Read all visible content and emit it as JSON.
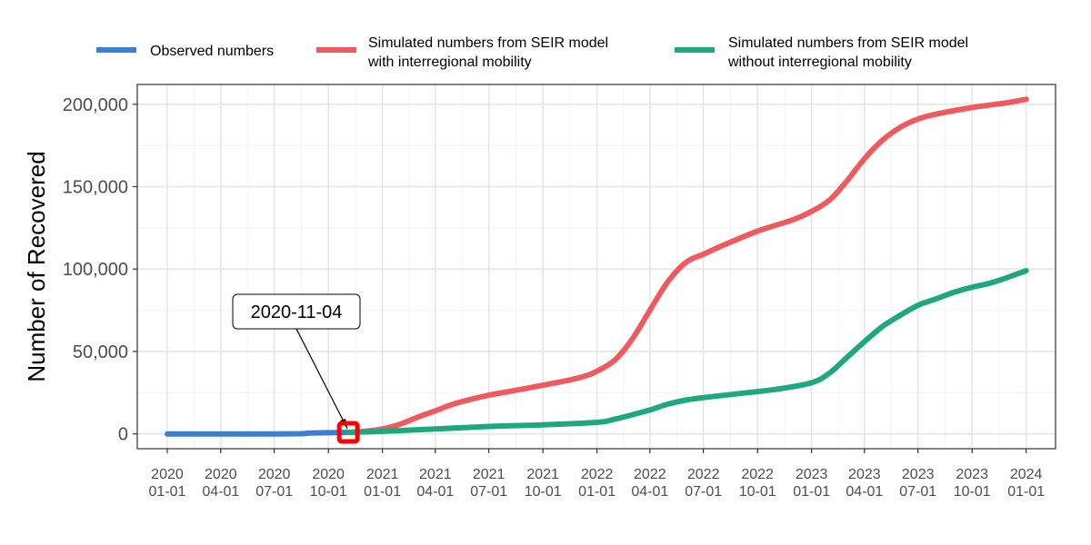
{
  "chart_data": {
    "type": "line",
    "title": "",
    "xlabel": "",
    "ylabel": "Number of Recovered",
    "ylim": [
      -9000,
      212000
    ],
    "xlim": [
      "2019-11-11",
      "2024-02-20"
    ],
    "grid": true,
    "legend_position": "top",
    "y_ticks": [
      {
        "value": 0,
        "label": "0"
      },
      {
        "value": 50000,
        "label": "50,000"
      },
      {
        "value": 100000,
        "label": "100,000"
      },
      {
        "value": 150000,
        "label": "150,000"
      },
      {
        "value": 200000,
        "label": "200,000"
      }
    ],
    "x_ticks": [
      {
        "date": "2020-01-01",
        "year": "2020",
        "md": "01-01"
      },
      {
        "date": "2020-04-01",
        "year": "2020",
        "md": "04-01"
      },
      {
        "date": "2020-07-01",
        "year": "2020",
        "md": "07-01"
      },
      {
        "date": "2020-10-01",
        "year": "2020",
        "md": "10-01"
      },
      {
        "date": "2021-01-01",
        "year": "2021",
        "md": "01-01"
      },
      {
        "date": "2021-04-01",
        "year": "2021",
        "md": "04-01"
      },
      {
        "date": "2021-07-01",
        "year": "2021",
        "md": "07-01"
      },
      {
        "date": "2021-10-01",
        "year": "2021",
        "md": "10-01"
      },
      {
        "date": "2022-01-01",
        "year": "2022",
        "md": "01-01"
      },
      {
        "date": "2022-04-01",
        "year": "2022",
        "md": "04-01"
      },
      {
        "date": "2022-07-01",
        "year": "2022",
        "md": "07-01"
      },
      {
        "date": "2022-10-01",
        "year": "2022",
        "md": "10-01"
      },
      {
        "date": "2023-01-01",
        "year": "2023",
        "md": "01-01"
      },
      {
        "date": "2023-04-01",
        "year": "2023",
        "md": "04-01"
      },
      {
        "date": "2023-07-01",
        "year": "2023",
        "md": "07-01"
      },
      {
        "date": "2023-10-01",
        "year": "2023",
        "md": "10-01"
      },
      {
        "date": "2024-01-01",
        "year": "2024",
        "md": "01-01"
      }
    ],
    "series": [
      {
        "name": "Observed numbers",
        "color": "#3a7fd5",
        "points": [
          [
            "2020-01-01",
            0
          ],
          [
            "2020-04-01",
            0
          ],
          [
            "2020-07-01",
            0
          ],
          [
            "2020-08-15",
            100
          ],
          [
            "2020-09-01",
            500
          ],
          [
            "2020-10-01",
            700
          ],
          [
            "2020-11-04",
            900
          ]
        ]
      },
      {
        "name": "Simulated numbers from SEIR model with interregional mobility",
        "color": "#ee5a5e",
        "points": [
          [
            "2020-11-04",
            900
          ],
          [
            "2020-12-01",
            1500
          ],
          [
            "2021-01-01",
            3000
          ],
          [
            "2021-02-01",
            6000
          ],
          [
            "2021-03-01",
            10000
          ],
          [
            "2021-04-01",
            14000
          ],
          [
            "2021-05-01",
            18000
          ],
          [
            "2021-06-01",
            21000
          ],
          [
            "2021-07-01",
            23500
          ],
          [
            "2021-08-01",
            25500
          ],
          [
            "2021-10-01",
            29500
          ],
          [
            "2021-12-01",
            34000
          ],
          [
            "2022-01-01",
            38000
          ],
          [
            "2022-02-01",
            45000
          ],
          [
            "2022-03-01",
            57000
          ],
          [
            "2022-04-01",
            75000
          ],
          [
            "2022-05-01",
            92000
          ],
          [
            "2022-06-01",
            104000
          ],
          [
            "2022-07-01",
            109000
          ],
          [
            "2022-08-01",
            114000
          ],
          [
            "2022-10-01",
            123000
          ],
          [
            "2022-12-01",
            130000
          ],
          [
            "2023-01-01",
            135000
          ],
          [
            "2023-02-01",
            142000
          ],
          [
            "2023-03-01",
            153000
          ],
          [
            "2023-04-01",
            167000
          ],
          [
            "2023-05-01",
            178000
          ],
          [
            "2023-06-01",
            186000
          ],
          [
            "2023-07-01",
            191000
          ],
          [
            "2023-08-01",
            194000
          ],
          [
            "2023-10-01",
            198000
          ],
          [
            "2023-12-01",
            201000
          ],
          [
            "2024-01-01",
            203000
          ]
        ]
      },
      {
        "name": "Simulated numbers from SEIR model without interregional mobility",
        "color": "#1fa87e",
        "points": [
          [
            "2020-11-04",
            900
          ],
          [
            "2021-01-01",
            1500
          ],
          [
            "2021-04-01",
            3000
          ],
          [
            "2021-07-01",
            4500
          ],
          [
            "2021-10-01",
            5500
          ],
          [
            "2022-01-01",
            7000
          ],
          [
            "2022-02-01",
            9000
          ],
          [
            "2022-03-01",
            11500
          ],
          [
            "2022-04-01",
            14500
          ],
          [
            "2022-05-01",
            18000
          ],
          [
            "2022-06-01",
            20500
          ],
          [
            "2022-07-01",
            22000
          ],
          [
            "2022-09-01",
            24500
          ],
          [
            "2022-11-01",
            27000
          ],
          [
            "2023-01-01",
            31000
          ],
          [
            "2023-02-01",
            37000
          ],
          [
            "2023-03-01",
            46000
          ],
          [
            "2023-04-01",
            56000
          ],
          [
            "2023-05-01",
            65000
          ],
          [
            "2023-06-01",
            72000
          ],
          [
            "2023-07-01",
            78000
          ],
          [
            "2023-08-01",
            82000
          ],
          [
            "2023-09-01",
            86000
          ],
          [
            "2023-10-01",
            89000
          ],
          [
            "2023-11-01",
            91500
          ],
          [
            "2023-12-01",
            95000
          ],
          [
            "2024-01-01",
            99000
          ]
        ]
      }
    ],
    "legend": [
      {
        "line1": "Observed numbers",
        "line2": "",
        "color": "#3a7fd5"
      },
      {
        "line1": "Simulated numbers from SEIR model",
        "line2": "with interregional mobility",
        "color": "#ee5a5e"
      },
      {
        "line1": "Simulated numbers from SEIR model",
        "line2": "without interregional mobility",
        "color": "#1fa87e"
      }
    ],
    "annotation": {
      "label": "2020-11-04",
      "date": "2020-11-04",
      "value": 900,
      "marker_color": "#ff0000"
    }
  }
}
